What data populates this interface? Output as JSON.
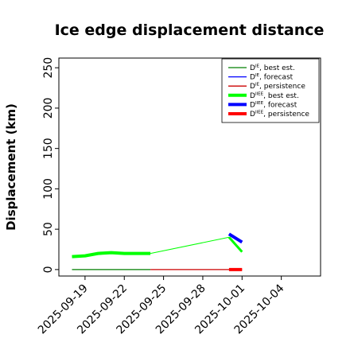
{
  "chart_data": {
    "type": "line",
    "title": "Ice edge displacement distance",
    "xlabel": "",
    "ylabel": "Displacement (km)",
    "x_range": [
      "2025-09-17",
      "2025-10-07"
    ],
    "ylim": [
      -8,
      262
    ],
    "y_ticks": [
      0,
      50,
      100,
      150,
      200,
      250
    ],
    "x_ticks": [
      "2025-09-19",
      "2025-09-22",
      "2025-09-25",
      "2025-09-28",
      "2025-10-01",
      "2025-10-04"
    ],
    "highlighted_tick": "2025-09-25",
    "highlight_color": "#2ca02c",
    "grid": false,
    "legend_position": "top-right",
    "legend": [
      {
        "label": "D^IE, best est.",
        "base": "D",
        "sup": "IE",
        "suffix": ", best est.",
        "color": "#007f00",
        "style": "thin"
      },
      {
        "label": "D^IE, forecast",
        "base": "D",
        "sup": "IE",
        "suffix": ", forecast",
        "color": "#0000ff",
        "style": "thin"
      },
      {
        "label": "D^IE, persistence",
        "base": "D",
        "sup": "IE",
        "suffix": ", persistence",
        "color": "#cc0000",
        "style": "thin"
      },
      {
        "label": "D^IIEE, best est.",
        "base": "D",
        "sup": "IIEE",
        "suffix": ", best est.",
        "color": "#00ff00",
        "style": "thick"
      },
      {
        "label": "D^IIEE, forecast",
        "base": "D",
        "sup": "IIEE",
        "suffix": ", forecast",
        "color": "#0000ff",
        "style": "thick"
      },
      {
        "label": "D^IIEE, persistence",
        "base": "D",
        "sup": "IIEE",
        "suffix": ", persistence",
        "color": "#ff0000",
        "style": "thick"
      }
    ],
    "series": [
      {
        "name": "D^IE, best est.",
        "color": "#007f00",
        "width": 1.3,
        "x": [
          "2025-09-18",
          "2025-09-24"
        ],
        "y": [
          0,
          0
        ]
      },
      {
        "name": "D^IE, persistence",
        "color": "#cc0000",
        "width": 1.3,
        "x": [
          "2025-09-24",
          "2025-10-01"
        ],
        "y": [
          0,
          0
        ]
      },
      {
        "name": "D^IIEE, best est.",
        "color": "#00ff00",
        "width": 4,
        "x": [
          "2025-09-18",
          "2025-09-19",
          "2025-09-20",
          "2025-09-21",
          "2025-09-22",
          "2025-09-23",
          "2025-09-24"
        ],
        "y": [
          16,
          17,
          20,
          21,
          20,
          20,
          20
        ]
      },
      {
        "name": "D^IIEE, best est. (gap)",
        "color": "#00ff00",
        "width": 1,
        "x": [
          "2025-09-24",
          "2025-09-30"
        ],
        "y": [
          20,
          40
        ]
      },
      {
        "name": "D^IIEE, best est. (final)",
        "color": "#00ff00",
        "width": 3,
        "x": [
          "2025-09-30",
          "2025-10-01"
        ],
        "y": [
          40,
          22
        ]
      },
      {
        "name": "D^IIEE, forecast",
        "color": "#0000ff",
        "width": 4,
        "x": [
          "2025-09-30",
          "2025-10-01"
        ],
        "y": [
          44,
          34
        ]
      },
      {
        "name": "D^IIEE, persistence",
        "color": "#ff0000",
        "width": 4,
        "x": [
          "2025-09-30",
          "2025-10-01"
        ],
        "y": [
          0,
          0
        ]
      }
    ]
  }
}
